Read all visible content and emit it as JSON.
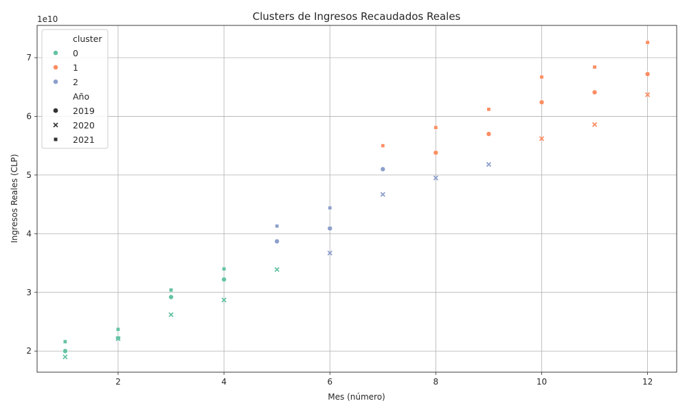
{
  "chart_data": {
    "type": "scatter",
    "title": "Clusters de Ingresos Recaudados Reales",
    "xlabel": "Mes (número)",
    "ylabel": "Ingresos Reales (CLP)",
    "y_offset_label": "1e10",
    "xlim": [
      0.47,
      12.55
    ],
    "ylim": [
      16400000000.0,
      75500000000.0
    ],
    "x_ticks": [
      2,
      4,
      6,
      8,
      10,
      12
    ],
    "y_ticks": [
      20000000000.0,
      30000000000.0,
      40000000000.0,
      50000000000.0,
      60000000000.0,
      70000000000.0
    ],
    "x_tick_labels": [
      "2",
      "4",
      "6",
      "8",
      "10",
      "12"
    ],
    "y_tick_labels": [
      "2",
      "3",
      "4",
      "5",
      "6",
      "7"
    ],
    "grid": true,
    "legend_placement": "upper-left",
    "legend": {
      "hue_title": "cluster",
      "hue_entries": [
        {
          "label": "0",
          "color": "#66c2a5"
        },
        {
          "label": "1",
          "color": "#fc8d62"
        },
        {
          "label": "2",
          "color": "#8da0cb"
        }
      ],
      "style_title": "Año",
      "style_entries": [
        {
          "label": "2019",
          "marker": "circle"
        },
        {
          "label": "2020",
          "marker": "x"
        },
        {
          "label": "2021",
          "marker": "square"
        }
      ]
    },
    "points": [
      {
        "x": 1,
        "y": 20000000000.0,
        "cluster": 0,
        "year": 2019
      },
      {
        "x": 2,
        "y": 22200000000.0,
        "cluster": 0,
        "year": 2019
      },
      {
        "x": 3,
        "y": 29200000000.0,
        "cluster": 0,
        "year": 2019
      },
      {
        "x": 4,
        "y": 32200000000.0,
        "cluster": 0,
        "year": 2019
      },
      {
        "x": 5,
        "y": 38700000000.0,
        "cluster": 2,
        "year": 2019
      },
      {
        "x": 6,
        "y": 40900000000.0,
        "cluster": 2,
        "year": 2019
      },
      {
        "x": 7,
        "y": 51000000000.0,
        "cluster": 2,
        "year": 2019
      },
      {
        "x": 8,
        "y": 53800000000.0,
        "cluster": 1,
        "year": 2019
      },
      {
        "x": 9,
        "y": 57000000000.0,
        "cluster": 1,
        "year": 2019
      },
      {
        "x": 10,
        "y": 62400000000.0,
        "cluster": 1,
        "year": 2019
      },
      {
        "x": 11,
        "y": 64100000000.0,
        "cluster": 1,
        "year": 2019
      },
      {
        "x": 12,
        "y": 67200000000.0,
        "cluster": 1,
        "year": 2019
      },
      {
        "x": 1,
        "y": 19000000000.0,
        "cluster": 0,
        "year": 2020
      },
      {
        "x": 2,
        "y": 22100000000.0,
        "cluster": 0,
        "year": 2020
      },
      {
        "x": 3,
        "y": 26200000000.0,
        "cluster": 0,
        "year": 2020
      },
      {
        "x": 4,
        "y": 28700000000.0,
        "cluster": 0,
        "year": 2020
      },
      {
        "x": 5,
        "y": 33900000000.0,
        "cluster": 0,
        "year": 2020
      },
      {
        "x": 6,
        "y": 36700000000.0,
        "cluster": 2,
        "year": 2020
      },
      {
        "x": 7,
        "y": 46700000000.0,
        "cluster": 2,
        "year": 2020
      },
      {
        "x": 8,
        "y": 49500000000.0,
        "cluster": 2,
        "year": 2020
      },
      {
        "x": 9,
        "y": 51800000000.0,
        "cluster": 2,
        "year": 2020
      },
      {
        "x": 10,
        "y": 56200000000.0,
        "cluster": 1,
        "year": 2020
      },
      {
        "x": 11,
        "y": 58600000000.0,
        "cluster": 1,
        "year": 2020
      },
      {
        "x": 12,
        "y": 63700000000.0,
        "cluster": 1,
        "year": 2020
      },
      {
        "x": 1,
        "y": 21600000000.0,
        "cluster": 0,
        "year": 2021
      },
      {
        "x": 2,
        "y": 23700000000.0,
        "cluster": 0,
        "year": 2021
      },
      {
        "x": 3,
        "y": 30400000000.0,
        "cluster": 0,
        "year": 2021
      },
      {
        "x": 4,
        "y": 34000000000.0,
        "cluster": 0,
        "year": 2021
      },
      {
        "x": 5,
        "y": 41300000000.0,
        "cluster": 2,
        "year": 2021
      },
      {
        "x": 6,
        "y": 44400000000.0,
        "cluster": 2,
        "year": 2021
      },
      {
        "x": 7,
        "y": 55000000000.0,
        "cluster": 1,
        "year": 2021
      },
      {
        "x": 8,
        "y": 58100000000.0,
        "cluster": 1,
        "year": 2021
      },
      {
        "x": 9,
        "y": 61200000000.0,
        "cluster": 1,
        "year": 2021
      },
      {
        "x": 10,
        "y": 66700000000.0,
        "cluster": 1,
        "year": 2021
      },
      {
        "x": 11,
        "y": 68400000000.0,
        "cluster": 1,
        "year": 2021
      },
      {
        "x": 12,
        "y": 72600000000.0,
        "cluster": 1,
        "year": 2021
      }
    ]
  }
}
